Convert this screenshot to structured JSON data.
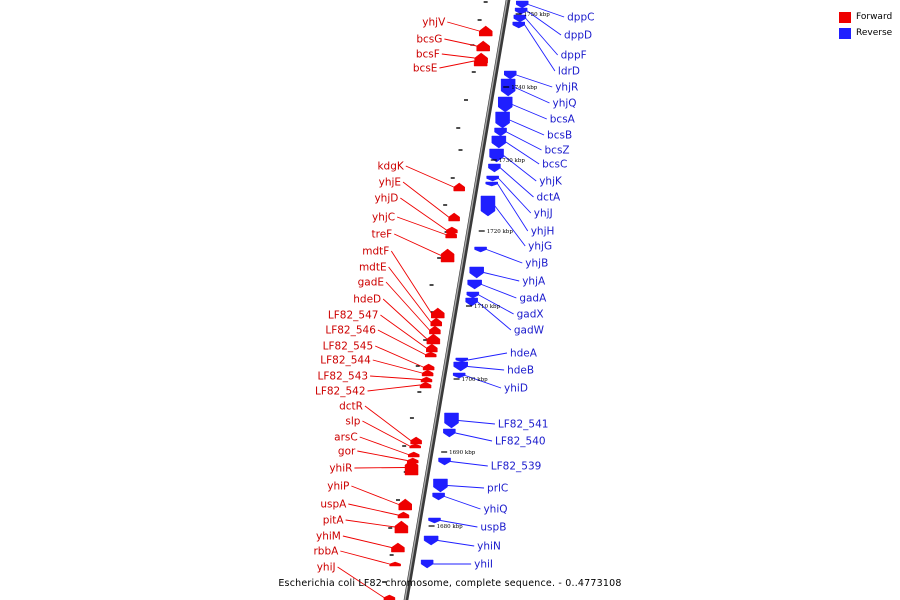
{
  "caption": "Escherichia coli LF82 chromosome, complete sequence. - 0..4773108",
  "legend": {
    "forward": {
      "label": "Forward",
      "color": "#ee0000"
    },
    "reverse": {
      "label": "Reverse",
      "color": "#1f1fff"
    }
  },
  "colors": {
    "forward_label": "#cc0000",
    "reverse_label": "#1a1acc",
    "backbone": "#777777"
  },
  "kbp_marks": [
    {
      "label": "1750 kbp"
    },
    {
      "label": "1740 kbp"
    },
    {
      "label": "1730 kbp"
    },
    {
      "label": "1720 kbp"
    },
    {
      "label": "1710 kbp"
    },
    {
      "label": "1700 kbp"
    },
    {
      "label": "1690 kbp"
    },
    {
      "label": "1680 kbp"
    }
  ],
  "forward_genes": [
    {
      "name": "yhjV"
    },
    {
      "name": "bcsG"
    },
    {
      "name": "bcsF"
    },
    {
      "name": "bcsE"
    },
    {
      "name": "kdgK"
    },
    {
      "name": "yhjE"
    },
    {
      "name": "yhjD"
    },
    {
      "name": "yhjC"
    },
    {
      "name": "treF"
    },
    {
      "name": "mdtF"
    },
    {
      "name": "mdtE"
    },
    {
      "name": "gadE"
    },
    {
      "name": "hdeD"
    },
    {
      "name": "LF82_547"
    },
    {
      "name": "LF82_546"
    },
    {
      "name": "LF82_545"
    },
    {
      "name": "LF82_544"
    },
    {
      "name": "LF82_543"
    },
    {
      "name": "LF82_542"
    },
    {
      "name": "dctR"
    },
    {
      "name": "slp"
    },
    {
      "name": "arsC"
    },
    {
      "name": "gor"
    },
    {
      "name": "yhiR"
    },
    {
      "name": "yhiP"
    },
    {
      "name": "uspA"
    },
    {
      "name": "pitA"
    },
    {
      "name": "yhiM"
    },
    {
      "name": "rbbA"
    },
    {
      "name": "yhiJ"
    }
  ],
  "reverse_genes": [
    {
      "name": "dppC"
    },
    {
      "name": "dppD"
    },
    {
      "name": "dppF"
    },
    {
      "name": "ldrD"
    },
    {
      "name": "yhjR"
    },
    {
      "name": "yhjQ"
    },
    {
      "name": "bcsA"
    },
    {
      "name": "bcsB"
    },
    {
      "name": "bcsZ"
    },
    {
      "name": "bcsC"
    },
    {
      "name": "yhjK"
    },
    {
      "name": "dctA"
    },
    {
      "name": "yhjJ"
    },
    {
      "name": "yhjH"
    },
    {
      "name": "yhjG"
    },
    {
      "name": "yhjB"
    },
    {
      "name": "yhjA"
    },
    {
      "name": "gadA"
    },
    {
      "name": "gadX"
    },
    {
      "name": "gadW"
    },
    {
      "name": "hdeA"
    },
    {
      "name": "hdeB"
    },
    {
      "name": "yhiD"
    },
    {
      "name": "LF82_541"
    },
    {
      "name": "LF82_540"
    },
    {
      "name": "LF82_539"
    },
    {
      "name": "prlC"
    },
    {
      "name": "yhiQ"
    },
    {
      "name": "uspB"
    },
    {
      "name": "yhiN"
    },
    {
      "name": "yhiI"
    }
  ]
}
